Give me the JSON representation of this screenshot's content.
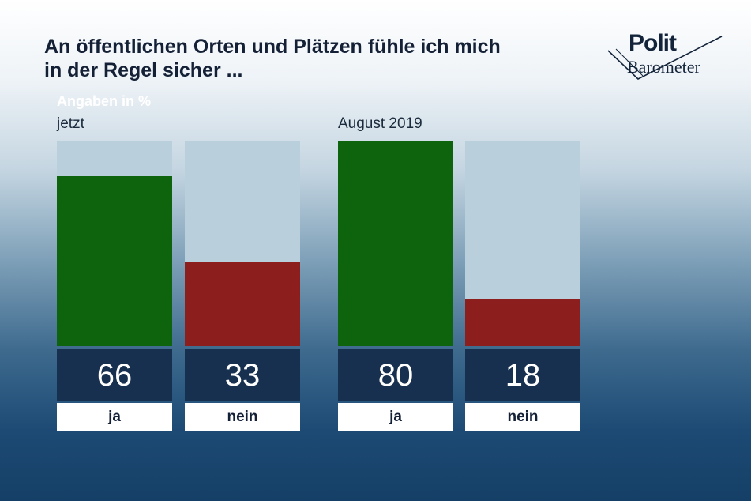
{
  "chart_data": {
    "type": "bar",
    "title_lines": [
      "An öffentlichen Orten und Plätzen fühle ich mich",
      "in der Regel sicher ..."
    ],
    "unit_label": "Angaben in %",
    "ylim": [
      0,
      80
    ],
    "panels": [
      {
        "label": "jetzt",
        "categories": [
          "ja",
          "nein"
        ],
        "values": [
          66,
          33
        ],
        "colors": [
          "#0e640d",
          "#8d1e1e"
        ]
      },
      {
        "label": "August 2019",
        "categories": [
          "ja",
          "nein"
        ],
        "values": [
          80,
          18
        ],
        "colors": [
          "#0e640d",
          "#8d1e1e"
        ]
      }
    ]
  },
  "logo": {
    "line1": "Polit",
    "line2": "Barometer"
  }
}
